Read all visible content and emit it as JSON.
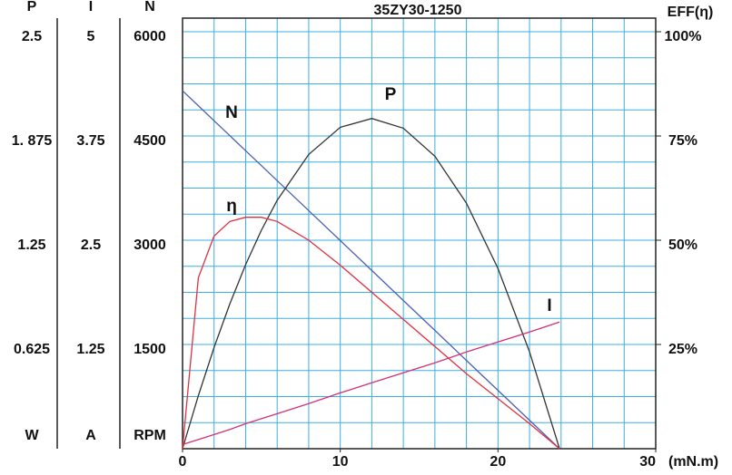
{
  "chart_data": {
    "type": "line",
    "title": "35ZY30-1250",
    "xlabel": "(mN.m)",
    "xlim": [
      0,
      30
    ],
    "xticks": [
      0,
      10,
      20,
      30
    ],
    "grid": true,
    "grid_color": "#3ab0e0",
    "axes": [
      {
        "name": "P",
        "unit": "W",
        "lim": [
          0,
          2.5
        ],
        "ticks": [
          {
            "value": 0.625,
            "label": "0.625"
          },
          1.25,
          {
            "value": 1.875,
            "label": "1. 875"
          },
          2.5
        ]
      },
      {
        "name": "I",
        "unit": "A",
        "lim": [
          0,
          5
        ],
        "ticks": [
          1.25,
          2.5,
          3.75,
          5
        ]
      },
      {
        "name": "N",
        "unit": "RPM",
        "lim": [
          0,
          6000
        ],
        "ticks": [
          1500,
          3000,
          4500,
          6000
        ]
      },
      {
        "name": "EFF(η)",
        "lim": [
          0,
          100
        ],
        "ticks": [
          {
            "value": 25,
            "label": "25%"
          },
          {
            "value": 50,
            "label": "50%"
          },
          {
            "value": 75,
            "label": "75%"
          },
          {
            "value": 100,
            "label": "100%"
          }
        ]
      }
    ],
    "x": [
      0,
      1,
      2,
      3,
      4,
      5,
      6,
      8,
      10,
      12,
      14,
      16,
      18,
      20,
      22,
      23.9
    ],
    "series": [
      {
        "name": "N",
        "axis": 2,
        "color": "#4a5fb5",
        "values": [
          5150,
          4935,
          4719,
          4504,
          4288,
          4073,
          3857,
          3426,
          2995,
          2564,
          2133,
          1702,
          1271,
          840,
          409,
          0
        ]
      },
      {
        "name": "P",
        "axis": 0,
        "color": "#333333",
        "values": [
          0,
          0.318,
          0.607,
          0.869,
          1.104,
          1.31,
          1.489,
          1.764,
          1.927,
          1.98,
          1.922,
          1.753,
          1.472,
          1.081,
          0.58,
          0
        ]
      },
      {
        "name": "η",
        "axis": 3,
        "color": "#e03040",
        "values": [
          0,
          41,
          51,
          54.5,
          55.5,
          55.5,
          54.5,
          50,
          44,
          37.5,
          31,
          24.5,
          18,
          12,
          6,
          0
        ]
      },
      {
        "name": "I",
        "axis": 1,
        "color": "#d0307a",
        "values": [
          0.05,
          0.11,
          0.17,
          0.23,
          0.3,
          0.36,
          0.42,
          0.54,
          0.67,
          0.79,
          0.91,
          1.03,
          1.16,
          1.28,
          1.4,
          1.52
        ]
      }
    ]
  }
}
